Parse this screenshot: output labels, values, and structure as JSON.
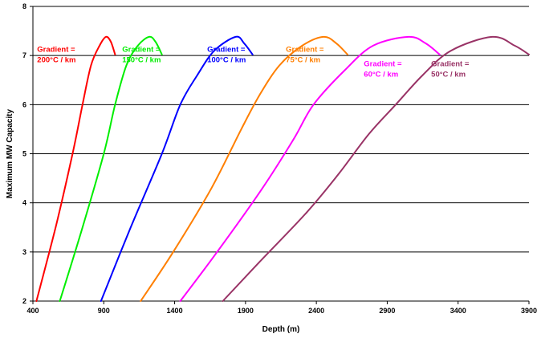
{
  "chart_data": {
    "type": "line",
    "xlabel": "Depth (m)",
    "ylabel": "Maximum MW Capacity",
    "xlim": [
      400,
      3900
    ],
    "ylim": [
      2,
      8
    ],
    "xticks": [
      400,
      900,
      1400,
      1900,
      2400,
      2900,
      3400,
      3900
    ],
    "yticks": [
      2,
      3,
      4,
      5,
      6,
      7,
      8
    ],
    "grid": "horizontal",
    "series": [
      {
        "name": "Gradient = 200°C / km",
        "color": "#ff0000",
        "label_lines": [
          "Gradient =",
          "200°C / km"
        ],
        "label_at": [
          430,
          7.08
        ],
        "x": [
          425,
          560,
          680,
          750,
          810,
          870,
          915,
          950,
          980
        ],
        "y": [
          2.0,
          3.5,
          5.0,
          6.0,
          6.8,
          7.2,
          7.38,
          7.28,
          7.02
        ]
      },
      {
        "name": "Gradient = 150°C / km",
        "color": "#00ee00",
        "label_lines": [
          "Gradient =",
          "150°C / km"
        ],
        "label_at": [
          1030,
          7.08
        ],
        "x": [
          590,
          750,
          900,
          980,
          1060,
          1140,
          1220,
          1265,
          1310
        ],
        "y": [
          2.0,
          3.5,
          5.0,
          6.0,
          6.8,
          7.2,
          7.38,
          7.28,
          7.02
        ]
      },
      {
        "name": "Gradient = 100°C / km",
        "color": "#0000ff",
        "label_lines": [
          "Gradient =",
          "100°C / km"
        ],
        "label_at": [
          1630,
          7.08
        ],
        "x": [
          880,
          1090,
          1310,
          1440,
          1560,
          1680,
          1830,
          1890,
          1950
        ],
        "y": [
          2.0,
          3.5,
          5.0,
          6.0,
          6.6,
          7.1,
          7.38,
          7.25,
          7.02
        ]
      },
      {
        "name": "Gradient = 75°C / km",
        "color": "#ff7f00",
        "label_lines": [
          "Gradient =",
          "75°C / km"
        ],
        "label_at": [
          2185,
          7.08
        ],
        "x": [
          1160,
          1390,
          1660,
          1870,
          2000,
          2140,
          2300,
          2450,
          2540,
          2620
        ],
        "y": [
          2.0,
          3.0,
          4.3,
          5.5,
          6.2,
          6.8,
          7.2,
          7.38,
          7.25,
          7.02
        ]
      },
      {
        "name": "Gradient = 60°C / km",
        "color": "#ff00ff",
        "label_lines": [
          "Gradient =",
          "60°C / km"
        ],
        "label_at": [
          2735,
          6.78
        ],
        "x": [
          1440,
          1700,
          2020,
          2240,
          2380,
          2600,
          2800,
          3050,
          3170,
          3270
        ],
        "y": [
          2.0,
          3.0,
          4.3,
          5.3,
          6.0,
          6.7,
          7.2,
          7.38,
          7.25,
          7.02
        ]
      },
      {
        "name": "Gradient = 50°C / km",
        "color": "#993366",
        "label_lines": [
          "Gradient =",
          "50°C / km"
        ],
        "label_at": [
          3210,
          6.78
        ],
        "x": [
          1740,
          2000,
          2330,
          2560,
          2770,
          2960,
          3150,
          3350,
          3640,
          3800,
          3900
        ],
        "y": [
          2.0,
          2.8,
          3.8,
          4.6,
          5.4,
          6.0,
          6.6,
          7.1,
          7.38,
          7.2,
          7.02
        ]
      }
    ]
  }
}
